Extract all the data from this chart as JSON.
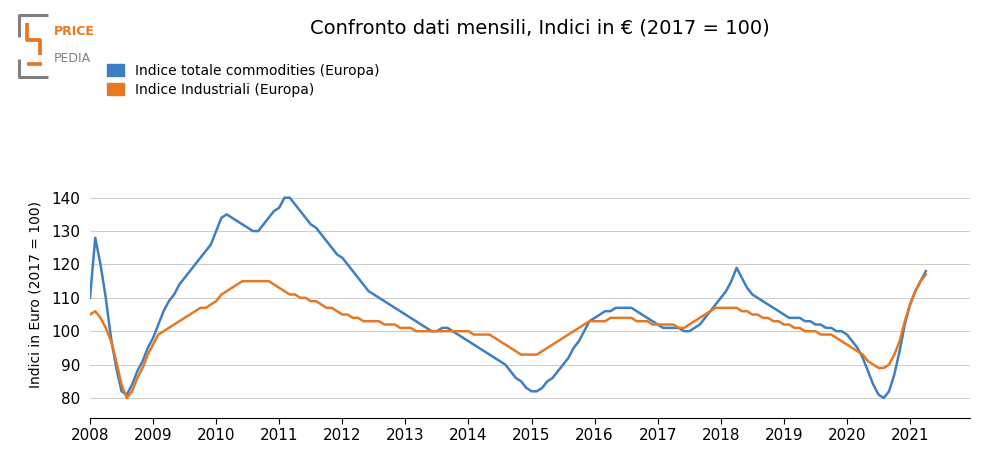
{
  "title": "Confronto dati mensili, Indici in € (2017 = 100)",
  "ylabel": "Indici in Euro (2017 = 100)",
  "line1_label": "Indice totale commodities (Europa)",
  "line2_label": "Indice Industriali (Europa)",
  "line1_color": "#3d7fc1",
  "line2_color": "#e87722",
  "background_color": "#ffffff",
  "ylim": [
    74,
    148
  ],
  "yticks": [
    80,
    90,
    100,
    110,
    120,
    130,
    140
  ],
  "xticks": [
    2008,
    2009,
    2010,
    2011,
    2012,
    2013,
    2014,
    2015,
    2016,
    2017,
    2018,
    2019,
    2020,
    2021
  ],
  "line1_data": [
    110,
    128,
    120,
    110,
    98,
    89,
    82,
    81,
    84,
    88,
    91,
    95,
    98,
    102,
    106,
    109,
    111,
    114,
    116,
    118,
    120,
    122,
    124,
    126,
    130,
    134,
    135,
    134,
    133,
    132,
    131,
    130,
    130,
    132,
    134,
    136,
    137,
    140,
    140,
    138,
    136,
    134,
    132,
    131,
    129,
    127,
    125,
    123,
    122,
    120,
    118,
    116,
    114,
    112,
    111,
    110,
    109,
    108,
    107,
    106,
    105,
    104,
    103,
    102,
    101,
    100,
    100,
    101,
    101,
    100,
    99,
    98,
    97,
    96,
    95,
    94,
    93,
    92,
    91,
    90,
    88,
    86,
    85,
    83,
    82,
    82,
    83,
    85,
    86,
    88,
    90,
    92,
    95,
    97,
    100,
    103,
    104,
    105,
    106,
    106,
    107,
    107,
    107,
    107,
    106,
    105,
    104,
    103,
    102,
    101,
    101,
    101,
    101,
    100,
    100,
    101,
    102,
    104,
    106,
    108,
    110,
    112,
    115,
    119,
    116,
    113,
    111,
    110,
    109,
    108,
    107,
    106,
    105,
    104,
    104,
    104,
    103,
    103,
    102,
    102,
    101,
    101,
    100,
    100,
    99,
    97,
    95,
    92,
    88,
    84,
    81,
    80,
    82,
    87,
    94,
    102,
    108,
    112,
    115,
    118
  ],
  "line2_data": [
    105,
    106,
    104,
    101,
    97,
    91,
    84,
    80,
    82,
    86,
    89,
    93,
    96,
    99,
    100,
    101,
    102,
    103,
    104,
    105,
    106,
    107,
    107,
    108,
    109,
    111,
    112,
    113,
    114,
    115,
    115,
    115,
    115,
    115,
    115,
    114,
    113,
    112,
    111,
    111,
    110,
    110,
    109,
    109,
    108,
    107,
    107,
    106,
    105,
    105,
    104,
    104,
    103,
    103,
    103,
    103,
    102,
    102,
    102,
    101,
    101,
    101,
    100,
    100,
    100,
    100,
    100,
    100,
    100,
    100,
    100,
    100,
    100,
    99,
    99,
    99,
    99,
    98,
    97,
    96,
    95,
    94,
    93,
    93,
    93,
    93,
    94,
    95,
    96,
    97,
    98,
    99,
    100,
    101,
    102,
    103,
    103,
    103,
    103,
    104,
    104,
    104,
    104,
    104,
    103,
    103,
    103,
    102,
    102,
    102,
    102,
    102,
    101,
    101,
    102,
    103,
    104,
    105,
    106,
    107,
    107,
    107,
    107,
    107,
    106,
    106,
    105,
    105,
    104,
    104,
    103,
    103,
    102,
    102,
    101,
    101,
    100,
    100,
    100,
    99,
    99,
    99,
    98,
    97,
    96,
    95,
    94,
    93,
    91,
    90,
    89,
    89,
    90,
    93,
    97,
    103,
    108,
    112,
    115,
    117
  ]
}
